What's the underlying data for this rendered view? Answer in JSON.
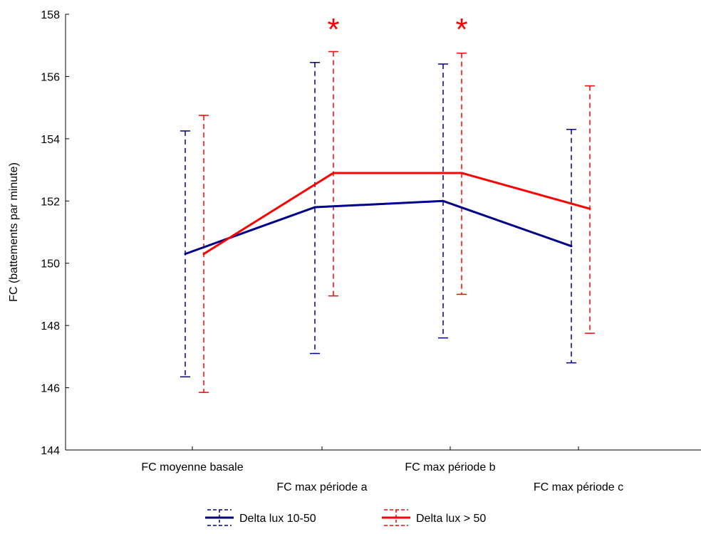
{
  "chart_data": {
    "type": "line",
    "title": "",
    "xlabel": "",
    "ylabel": "FC (battements par minute)",
    "ylim": [
      144,
      158
    ],
    "yticks": [
      "144",
      "146",
      "148",
      "150",
      "152",
      "154",
      "156",
      "158"
    ],
    "categories": [
      "FC moyenne basale",
      "FC max période a",
      "FC max période b",
      "FC max période c"
    ],
    "grid": false,
    "legend_position": "bottom",
    "error_bars": true,
    "series": [
      {
        "name": "Delta lux 10-50",
        "color": "#00008B",
        "values": [
          150.3,
          151.8,
          152.0,
          150.55
        ],
        "lower": [
          146.35,
          147.1,
          147.6,
          146.8
        ],
        "upper": [
          154.25,
          156.45,
          156.4,
          154.3
        ]
      },
      {
        "name": "Delta lux > 50",
        "color": "#FF0000",
        "values": [
          150.3,
          152.9,
          152.9,
          151.75
        ],
        "lower": [
          145.85,
          148.95,
          149.0,
          147.75
        ],
        "upper": [
          154.75,
          156.8,
          156.75,
          155.7
        ]
      }
    ],
    "annotations": [
      {
        "text": "*",
        "category_index": 1,
        "color": "#FF0000"
      },
      {
        "text": "*",
        "category_index": 2,
        "color": "#FF0000"
      }
    ]
  }
}
